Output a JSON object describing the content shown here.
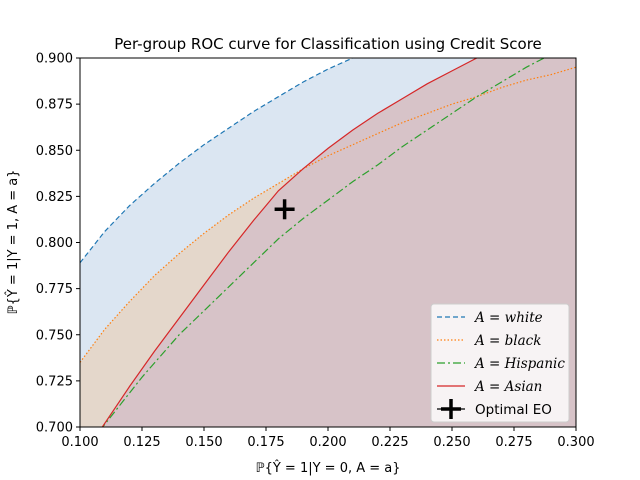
{
  "chart_data": {
    "type": "line",
    "title": "Per-group ROC curve for Classification using Credit Score",
    "xlabel": "ℙ{Ŷ = 1|Y = 0, A = a}",
    "ylabel": "ℙ{Ŷ = 1|Y = 1, A = a}",
    "xlim": [
      0.1,
      0.3
    ],
    "ylim": [
      0.7,
      0.9
    ],
    "x_ticks": [
      "0.100",
      "0.125",
      "0.150",
      "0.175",
      "0.200",
      "0.225",
      "0.250",
      "0.275",
      "0.300"
    ],
    "y_ticks": [
      "0.700",
      "0.725",
      "0.750",
      "0.775",
      "0.800",
      "0.825",
      "0.850",
      "0.875",
      "0.900"
    ],
    "grid": false,
    "legend_position": "lower-right",
    "series": [
      {
        "name": "A = white",
        "color": "#1f77b4",
        "fill": "#dbe6f2",
        "dash": "5,3",
        "points": [
          [
            0.1,
            0.789
          ],
          [
            0.11,
            0.806
          ],
          [
            0.12,
            0.82
          ],
          [
            0.13,
            0.832
          ],
          [
            0.14,
            0.843
          ],
          [
            0.15,
            0.853
          ],
          [
            0.16,
            0.862
          ],
          [
            0.17,
            0.871
          ],
          [
            0.18,
            0.879
          ],
          [
            0.19,
            0.887
          ],
          [
            0.2,
            0.894
          ],
          [
            0.21,
            0.9
          ],
          [
            0.215,
            0.903
          ]
        ]
      },
      {
        "name": "A = black",
        "color": "#ff7f0e",
        "fill": "#e4d7cb",
        "dash": "1.5,2",
        "points": [
          [
            0.1,
            0.735
          ],
          [
            0.11,
            0.753
          ],
          [
            0.12,
            0.768
          ],
          [
            0.13,
            0.782
          ],
          [
            0.14,
            0.794
          ],
          [
            0.15,
            0.805
          ],
          [
            0.16,
            0.815
          ],
          [
            0.17,
            0.824
          ],
          [
            0.18,
            0.832
          ],
          [
            0.19,
            0.84
          ],
          [
            0.2,
            0.847
          ],
          [
            0.21,
            0.853
          ],
          [
            0.22,
            0.859
          ],
          [
            0.23,
            0.865
          ],
          [
            0.24,
            0.87
          ],
          [
            0.25,
            0.875
          ],
          [
            0.26,
            0.879
          ],
          [
            0.27,
            0.884
          ],
          [
            0.28,
            0.888
          ],
          [
            0.29,
            0.891
          ],
          [
            0.3,
            0.895
          ]
        ]
      },
      {
        "name": "A = Hispanic",
        "color": "#2ca02c",
        "fill": "#c6b59e",
        "dash": "8,3,2,3",
        "points": [
          [
            0.108,
            0.698
          ],
          [
            0.115,
            0.71
          ],
          [
            0.125,
            0.727
          ],
          [
            0.14,
            0.75
          ],
          [
            0.15,
            0.763
          ],
          [
            0.16,
            0.776
          ],
          [
            0.17,
            0.789
          ],
          [
            0.18,
            0.802
          ],
          [
            0.19,
            0.813
          ],
          [
            0.2,
            0.823
          ],
          [
            0.21,
            0.833
          ],
          [
            0.22,
            0.842
          ],
          [
            0.23,
            0.852
          ],
          [
            0.24,
            0.861
          ],
          [
            0.25,
            0.87
          ],
          [
            0.26,
            0.879
          ],
          [
            0.27,
            0.887
          ],
          [
            0.28,
            0.895
          ],
          [
            0.29,
            0.902
          ]
        ]
      },
      {
        "name": "A = Asian",
        "color": "#d62728",
        "fill": "#d7c3c8",
        "dash": "",
        "points": [
          [
            0.108,
            0.698
          ],
          [
            0.12,
            0.722
          ],
          [
            0.13,
            0.741
          ],
          [
            0.14,
            0.759
          ],
          [
            0.15,
            0.777
          ],
          [
            0.16,
            0.795
          ],
          [
            0.17,
            0.812
          ],
          [
            0.175,
            0.82
          ],
          [
            0.18,
            0.828
          ],
          [
            0.19,
            0.84
          ],
          [
            0.2,
            0.851
          ],
          [
            0.21,
            0.861
          ],
          [
            0.22,
            0.87
          ],
          [
            0.23,
            0.878
          ],
          [
            0.24,
            0.886
          ],
          [
            0.25,
            0.893
          ],
          [
            0.26,
            0.9
          ],
          [
            0.265,
            0.903
          ]
        ]
      }
    ],
    "markers": [
      {
        "name": "Optimal EO",
        "x": 0.1825,
        "y": 0.818,
        "symbol": "plus",
        "color": "#000000"
      }
    ]
  }
}
